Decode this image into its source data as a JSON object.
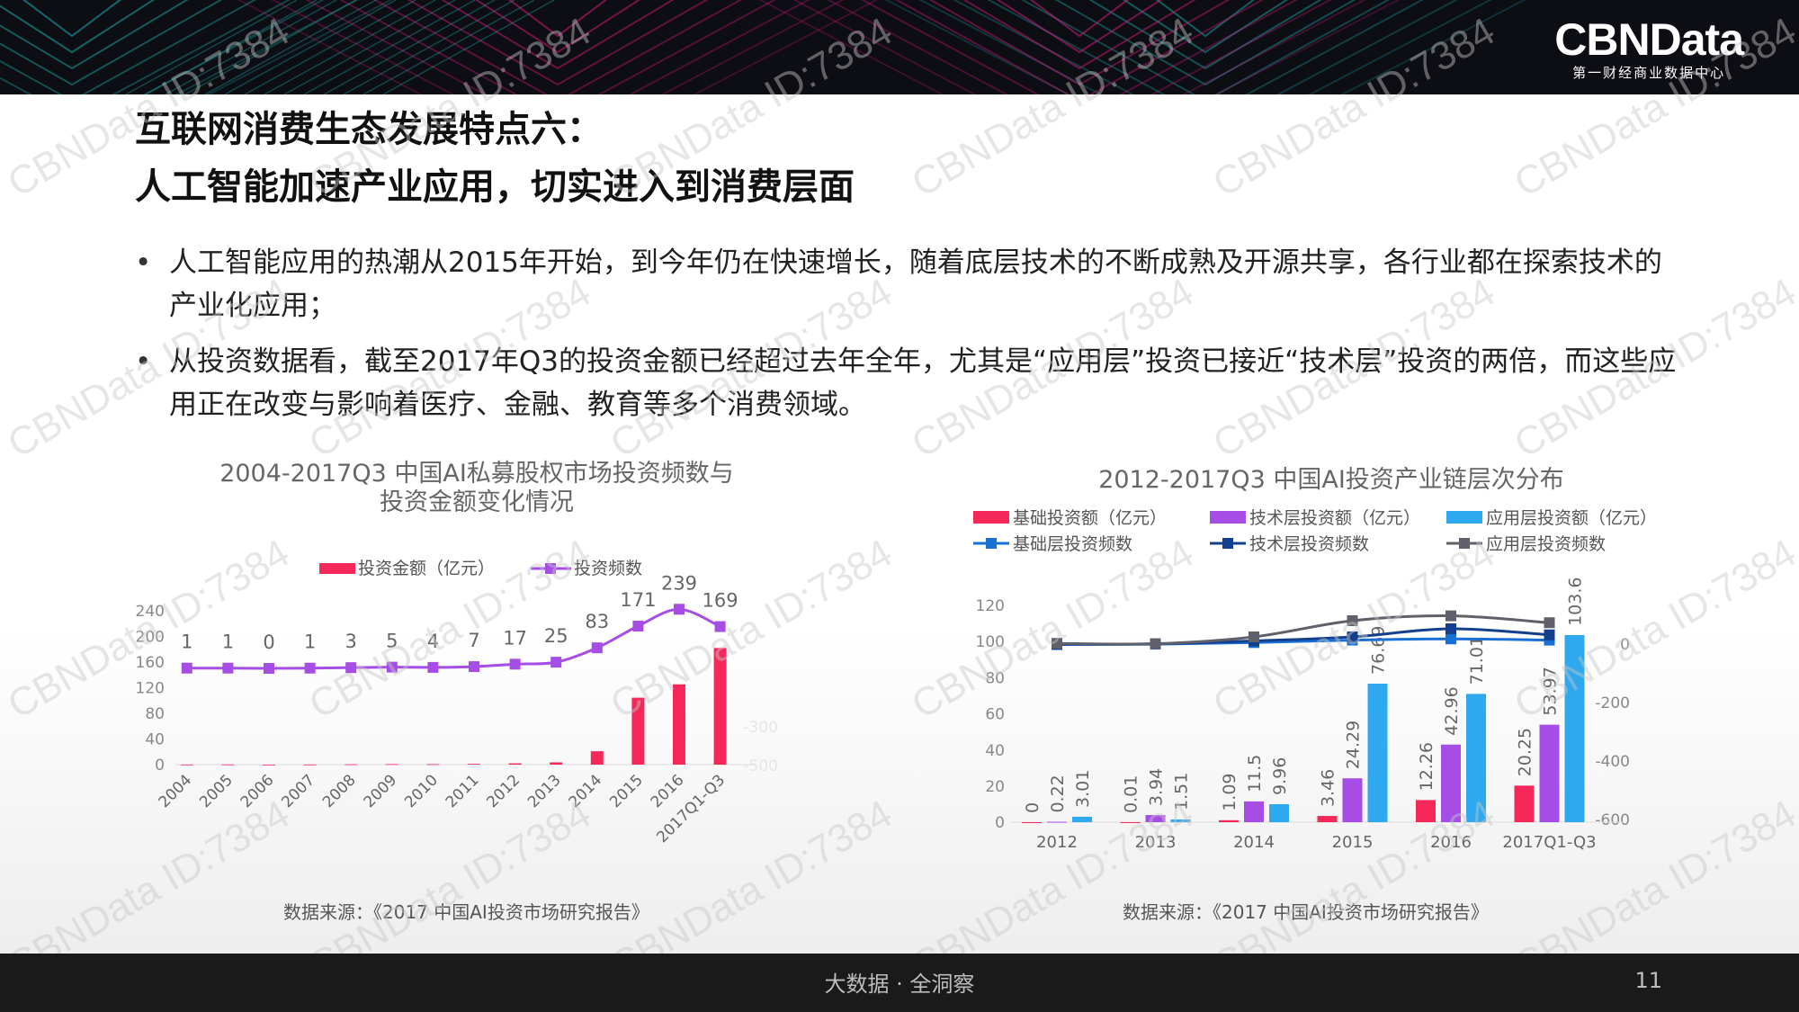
{
  "header": {
    "logo_text": "CBNData",
    "logo_tagline": "第一财经商业数据中心"
  },
  "title": {
    "line1": "互联网消费生态发展特点六：",
    "line2": "人工智能加速产业应用，切实进入到消费层面"
  },
  "bullets": [
    "人工智能应用的热潮从2015年开始，到今年仍在快速增长，随着底层技术的不断成熟及开源共享，各行业都在探索技术的产业化应用；",
    "从投资数据看，截至2017年Q3的投资金额已经超过去年全年，尤其是“应用层”投资已接近“技术层”投资的两倍，而这些应用正在改变与影响着医疗、金融、教育等多个消费领域。"
  ],
  "chart_data": [
    {
      "type": "bar",
      "title": "2004-2017Q3  中国AI私募股权市场投资频数与投资金额变化情况",
      "title_line1": "2004-2017Q3  中国AI私募股权市场投资频数与",
      "title_line2": "投资金额变化情况",
      "categories": [
        "2004",
        "2005",
        "2006",
        "2007",
        "2008",
        "2009",
        "2010",
        "2011",
        "2012",
        "2013",
        "2014",
        "2015",
        "2016",
        "2017Q1-Q3"
      ],
      "series": [
        {
          "name": "投资金额（亿元）",
          "kind": "bar",
          "color": "#f5285a",
          "values": [
            0.2,
            0.3,
            0,
            0.2,
            0.5,
            0.8,
            0.7,
            1.2,
            2,
            3.5,
            21,
            105,
            126,
            183
          ]
        },
        {
          "name": "投资频数",
          "kind": "line",
          "color": "#a64de6",
          "values": [
            1,
            1,
            0,
            1,
            3,
            5,
            4,
            7,
            17,
            25,
            83,
            171,
            239,
            169
          ]
        }
      ],
      "y_left_ticks": [
        "240",
        "200",
        "160",
        "120",
        "80",
        "40",
        "0"
      ],
      "y_right_ticks": [
        "-300",
        "-500"
      ],
      "ylim": [
        0,
        240
      ],
      "legend_position": "top",
      "source": "数据来源：《2017 中国AI投资市场研究报告》"
    },
    {
      "type": "bar",
      "title": "2012-2017Q3  中国AI投资产业链层次分布",
      "categories": [
        "2012",
        "2013",
        "2014",
        "2015",
        "2016",
        "2017Q1-Q3"
      ],
      "series": [
        {
          "name": "基础投资额（亿元）",
          "kind": "bar",
          "color": "#f5285a",
          "values": [
            0,
            0.01,
            1.09,
            3.46,
            12.26,
            20.25
          ],
          "labels": [
            "0",
            "0.01",
            "1.09",
            "3.46",
            "12.26",
            "20.25"
          ]
        },
        {
          "name": "技术层投资额（亿元）",
          "kind": "bar",
          "color": "#a64de6",
          "values": [
            0.22,
            3.94,
            11.5,
            24.29,
            42.96,
            53.97
          ],
          "labels": [
            "0.22",
            "3.94",
            "11.5",
            "24.29",
            "42.96",
            "53.97"
          ]
        },
        {
          "name": "应用层投资额（亿元）",
          "kind": "bar",
          "color": "#2ea8ee",
          "values": [
            3.01,
            1.51,
            9.96,
            76.69,
            71.01,
            103.6
          ],
          "labels": [
            "3.01",
            "1.51",
            "9.96",
            "76.69",
            "71.01",
            "103.6"
          ]
        },
        {
          "name": "基础层投资频数",
          "kind": "line",
          "color": "#1a6fd4",
          "values": [
            1,
            2,
            6,
            12,
            15,
            12
          ]
        },
        {
          "name": "技术层投资频数",
          "kind": "line",
          "color": "#143f8c",
          "values": [
            2,
            3,
            10,
            20,
            40,
            25
          ]
        },
        {
          "name": "应用层投资频数",
          "kind": "line",
          "color": "#5f6069",
          "values": [
            4,
            3,
            20,
            60,
            72,
            55
          ]
        }
      ],
      "y_left_ticks": [
        "120",
        "100",
        "80",
        "60",
        "40",
        "20",
        "0"
      ],
      "y_right_ticks": [
        "0",
        "-200",
        "-400",
        "-600"
      ],
      "ylim": [
        0,
        120
      ],
      "legend_position": "top",
      "source": "数据来源：《2017 中国AI投资市场研究报告》"
    }
  ],
  "watermark_text": "CBNData ID:7384",
  "footer": {
    "slogan": "大数据 · 全洞察",
    "page_number": "11"
  }
}
